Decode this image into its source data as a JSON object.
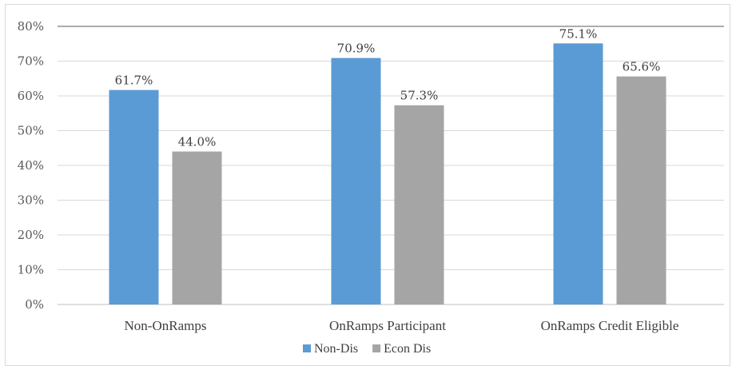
{
  "chart_data": {
    "type": "bar",
    "title": "",
    "xlabel": "",
    "ylabel": "",
    "categories": [
      "Non-OnRamps",
      "OnRamps Participant",
      "OnRamps Credit Eligible"
    ],
    "series": [
      {
        "name": "Non-Dis",
        "color": "#5b9bd5",
        "values": [
          61.7,
          70.9,
          75.1
        ],
        "labels": [
          "61.7%",
          "70.9%",
          "75.1%"
        ]
      },
      {
        "name": "Econ Dis",
        "color": "#a5a5a5",
        "values": [
          44.0,
          57.3,
          65.6
        ],
        "labels": [
          "44.0%",
          "57.3%",
          "65.6%"
        ]
      }
    ],
    "ylim": [
      0,
      80
    ],
    "yticks": [
      0,
      10,
      20,
      30,
      40,
      50,
      60,
      70,
      80
    ],
    "ytick_labels": [
      "0%",
      "10%",
      "20%",
      "30%",
      "40%",
      "50%",
      "60%",
      "70%",
      "80%"
    ],
    "grid": true,
    "legend_position": "bottom"
  }
}
